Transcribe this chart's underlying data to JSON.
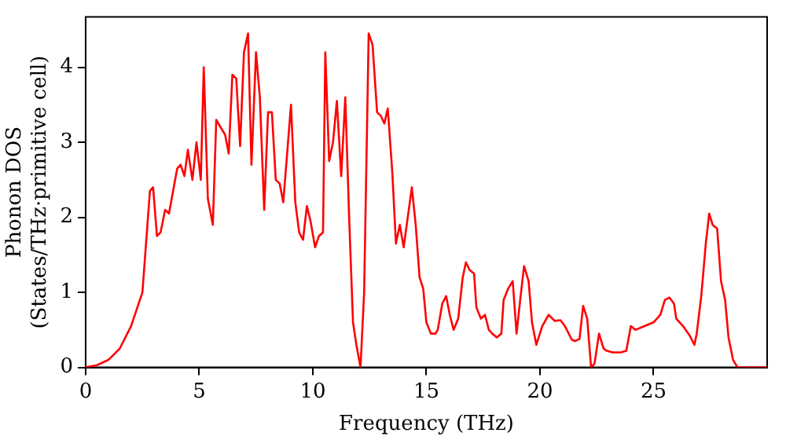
{
  "chart_data": {
    "type": "line",
    "xlabel": "Frequency (THz)",
    "ylabel": "Phonon DOS\n(States/THz·primitive cell)",
    "xlim": [
      0,
      30
    ],
    "xticks": [
      0,
      5,
      10,
      15,
      20,
      25
    ],
    "ylim": [
      0,
      4.67
    ],
    "yticks": [
      0,
      1,
      2,
      3,
      4
    ],
    "grid": false,
    "legend": false,
    "marker": "none",
    "line_style": "solid",
    "series": [
      {
        "color": "#ff0000",
        "x": [
          0,
          0.5,
          1,
          1.5,
          2,
          2.5,
          2.83,
          2.97,
          3.14,
          3.3,
          3.5,
          3.67,
          4.03,
          4.18,
          4.35,
          4.5,
          4.7,
          4.88,
          5.07,
          5.2,
          5.38,
          5.6,
          5.75,
          5.94,
          6.14,
          6.3,
          6.46,
          6.63,
          6.8,
          6.97,
          7.15,
          7.3,
          7.5,
          7.67,
          7.86,
          8.03,
          8.2,
          8.37,
          8.54,
          8.7,
          9.04,
          9.23,
          9.4,
          9.57,
          9.74,
          9.9,
          10.1,
          10.27,
          10.45,
          10.55,
          10.72,
          10.89,
          11.06,
          11.25,
          11.43,
          11.6,
          11.77,
          11.92,
          12.1,
          12.26,
          12.46,
          12.63,
          12.83,
          13,
          13.15,
          13.3,
          13.5,
          13.66,
          13.83,
          14,
          14.36,
          14.53,
          14.7,
          14.86,
          15,
          15.2,
          15.4,
          15.5,
          15.7,
          15.87,
          16.03,
          16.2,
          16.4,
          16.6,
          16.74,
          16.9,
          17.1,
          17.2,
          17.4,
          17.58,
          17.75,
          17.9,
          18.1,
          18.3,
          18.4,
          18.6,
          18.8,
          18.97,
          19.13,
          19.3,
          19.5,
          19.65,
          19.84,
          20.1,
          20.38,
          20.65,
          20.9,
          21.1,
          21.4,
          21.54,
          21.74,
          21.9,
          22.08,
          22.25,
          22.4,
          22.6,
          22.8,
          22.95,
          23.2,
          23.56,
          23.8,
          24,
          24.2,
          24.6,
          25,
          25.3,
          25.5,
          25.7,
          25.9,
          26,
          26.3,
          26.6,
          26.8,
          26.9,
          27.1,
          27.3,
          27.45,
          27.6,
          27.8,
          27.97,
          28.15,
          28.3,
          28.5,
          28.7,
          30
        ],
        "values": [
          0,
          0.03,
          0.1,
          0.25,
          0.55,
          1,
          2.35,
          2.4,
          1.75,
          1.8,
          2.1,
          2.05,
          2.65,
          2.7,
          2.55,
          2.9,
          2.5,
          3,
          2.5,
          4,
          2.25,
          1.9,
          3.3,
          3.2,
          3.1,
          2.85,
          3.9,
          3.85,
          2.95,
          4.2,
          4.45,
          2.7,
          4.2,
          3.6,
          2.1,
          3.4,
          3.4,
          2.5,
          2.45,
          2.2,
          3.5,
          2.2,
          1.8,
          1.7,
          2.15,
          1.95,
          1.6,
          1.75,
          1.8,
          4.2,
          2.75,
          3,
          3.55,
          2.55,
          3.6,
          2,
          0.6,
          0.3,
          0,
          1,
          4.45,
          4.3,
          3.4,
          3.35,
          3.25,
          3.45,
          2.6,
          1.65,
          1.9,
          1.6,
          2.4,
          1.9,
          1.2,
          1.05,
          0.6,
          0.45,
          0.45,
          0.5,
          0.85,
          0.95,
          0.7,
          0.5,
          0.65,
          1.2,
          1.4,
          1.3,
          1.25,
          0.8,
          0.65,
          0.7,
          0.5,
          0.45,
          0.4,
          0.45,
          0.9,
          1.05,
          1.15,
          0.45,
          0.9,
          1.35,
          1.15,
          0.6,
          0.3,
          0.55,
          0.7,
          0.62,
          0.63,
          0.55,
          0.37,
          0.35,
          0.38,
          0.82,
          0.65,
          0,
          0.05,
          0.45,
          0.25,
          0.22,
          0.2,
          0.2,
          0.22,
          0.55,
          0.5,
          0.55,
          0.6,
          0.7,
          0.9,
          0.93,
          0.85,
          0.65,
          0.55,
          0.42,
          0.3,
          0.45,
          0.95,
          1.65,
          2.05,
          1.9,
          1.85,
          1.15,
          0.9,
          0.4,
          0.1,
          0,
          0
        ]
      }
    ]
  }
}
